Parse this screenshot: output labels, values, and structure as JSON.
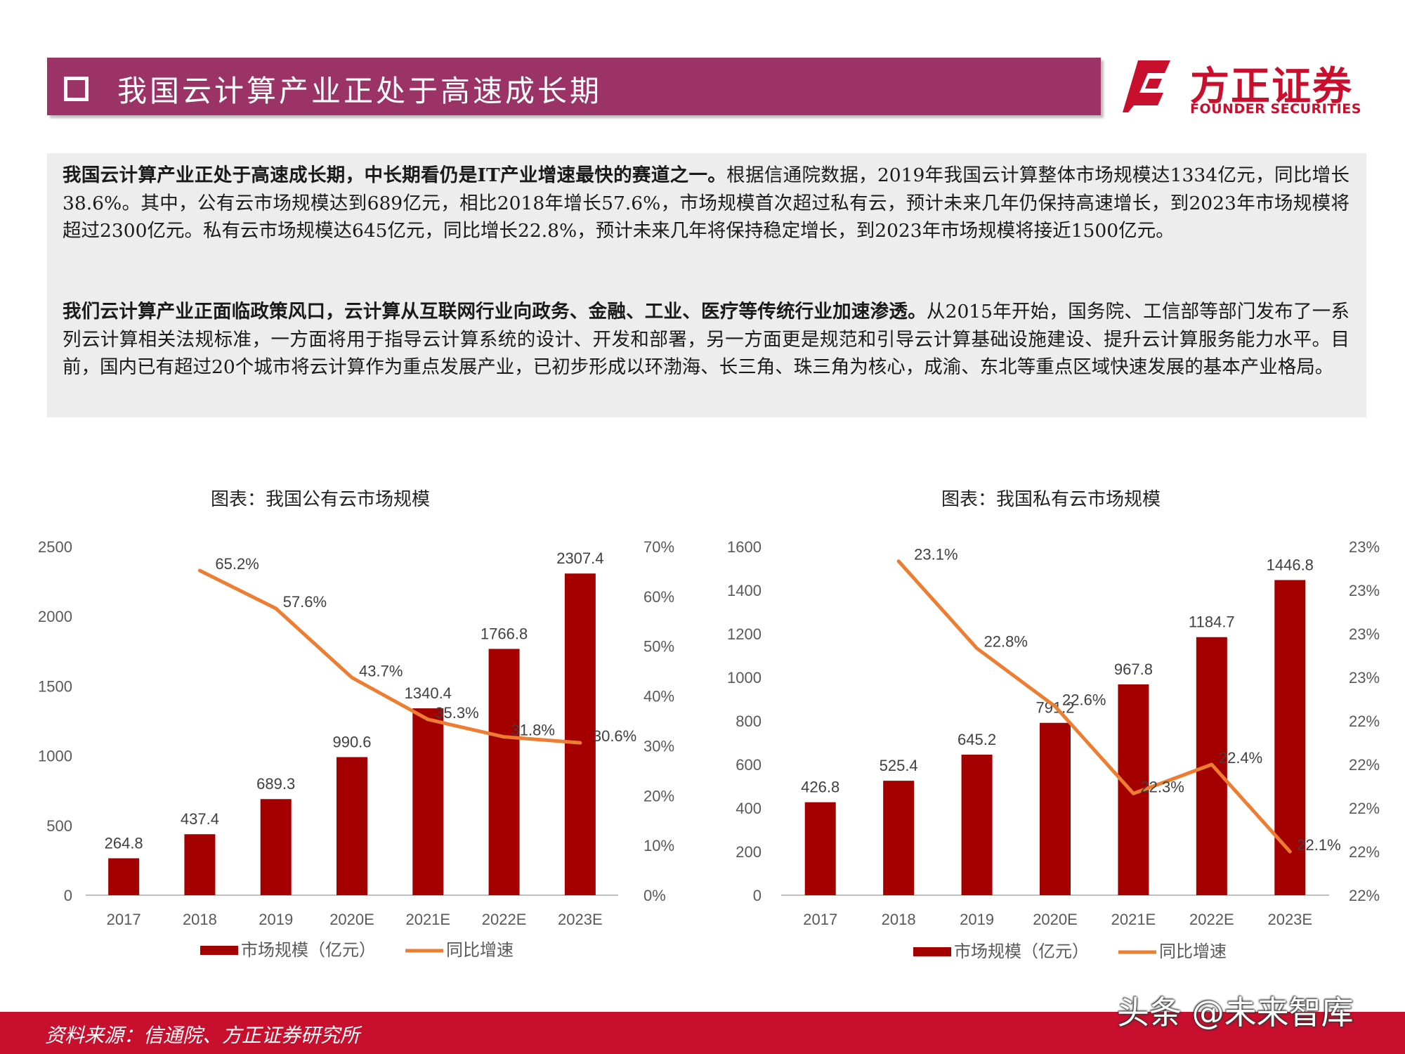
{
  "header": {
    "title": "我国云计算产业正处于高速成长期"
  },
  "logo": {
    "cn": "方正证券",
    "en": "FOUNDER SECURITIES",
    "color": "#c8102e"
  },
  "summary": {
    "p1_bold": "我国云计算产业正处于高速成长期，中长期看仍是IT产业增速最快的赛道之一。",
    "p1_text": "根据信通院数据，2019年我国云计算整体市场规模达1334亿元，同比增长38.6%。其中，公有云市场规模达到689亿元，相比2018年增长57.6%，市场规模首次超过私有云，预计未来几年仍保持高速增长，到2023年市场规模将超过2300亿元。私有云市场规模达645亿元，同比增长22.8%，预计未来几年将保持稳定增长，到2023年市场规模将接近1500亿元。",
    "p2_bold": "我们云计算产业正面临政策风口，云计算从互联网行业向政务、金融、工业、医疗等传统行业加速渗透。",
    "p2_text": "从2015年开始，国务院、工信部等部门发布了一系列云计算相关法规标准，一方面将用于指导云计算系统的设计、开发和部署，另一方面更是规范和引导云计算基础设施建设、提升云计算服务能力水平。目前，国内已有超过20个城市将云计算作为重点发展产业，已初步形成以环渤海、长三角、珠三角为核心，成渝、东北等重点区域快速发展的基本产业格局。"
  },
  "chart_data": [
    {
      "type": "bar+line",
      "title": "图表：我国公有云市场规模",
      "categories": [
        "2017",
        "2018",
        "2019",
        "2020E",
        "2021E",
        "2022E",
        "2023E"
      ],
      "series": [
        {
          "name": "市场规模（亿元）",
          "type": "bar",
          "axis": "left",
          "color": "#a50000",
          "values": [
            264.8,
            437.4,
            689.3,
            990.6,
            1340.4,
            1766.8,
            2307.4
          ],
          "labels": [
            "264.8",
            "437.4",
            "689.3",
            "990.6",
            "1340.4",
            "1766.8",
            "2307.4"
          ]
        },
        {
          "name": "同比增速",
          "type": "line",
          "axis": "right",
          "color": "#ed7d31",
          "values": [
            null,
            65.2,
            57.6,
            43.7,
            35.3,
            31.8,
            30.6
          ],
          "labels": [
            "",
            "65.2%",
            "57.6%",
            "43.7%",
            "35.3%",
            "31.8%",
            "30.6%"
          ]
        }
      ],
      "left_axis": {
        "min": 0,
        "max": 2500,
        "ticks": [
          "0",
          "500",
          "1000",
          "1500",
          "2000",
          "2500"
        ]
      },
      "right_axis": {
        "min": 0,
        "max": 70,
        "ticks": [
          "0%",
          "10%",
          "20%",
          "30%",
          "40%",
          "50%",
          "60%",
          "70%"
        ]
      },
      "legend": "bottom",
      "grid": false
    },
    {
      "type": "bar+line",
      "title": "图表：我国私有云市场规模",
      "categories": [
        "2017",
        "2018",
        "2019",
        "2020E",
        "2021E",
        "2022E",
        "2023E"
      ],
      "series": [
        {
          "name": "市场规模（亿元）",
          "type": "bar",
          "axis": "left",
          "color": "#a50000",
          "values": [
            426.8,
            525.4,
            645.2,
            791.2,
            967.8,
            1184.7,
            1446.8
          ],
          "labels": [
            "426.8",
            "525.4",
            "645.2",
            "791.2",
            "967.8",
            "1184.7",
            "1446.8"
          ]
        },
        {
          "name": "同比增速",
          "type": "line",
          "axis": "right",
          "color": "#ed7d31",
          "values": [
            null,
            23.1,
            22.8,
            22.6,
            22.3,
            22.4,
            22.1
          ],
          "labels": [
            "",
            "23.1%",
            "22.8%",
            "22.6%",
            "22.3%",
            "22.4%",
            "22.1%"
          ]
        }
      ],
      "left_axis": {
        "min": 0,
        "max": 1600,
        "ticks": [
          "0",
          "200",
          "400",
          "600",
          "800",
          "1000",
          "1200",
          "1400",
          "1600"
        ]
      },
      "right_axis": {
        "min": 21.95,
        "max": 23.15,
        "ticks": [
          "22%",
          "22%",
          "22%",
          "22%",
          "22%",
          "23%",
          "23%",
          "23%",
          "23%"
        ]
      },
      "legend": "bottom",
      "grid": false
    }
  ],
  "footer": {
    "source": "资料来源：信通院、方正证券研究所",
    "watermark": "头条 @未来智库"
  }
}
